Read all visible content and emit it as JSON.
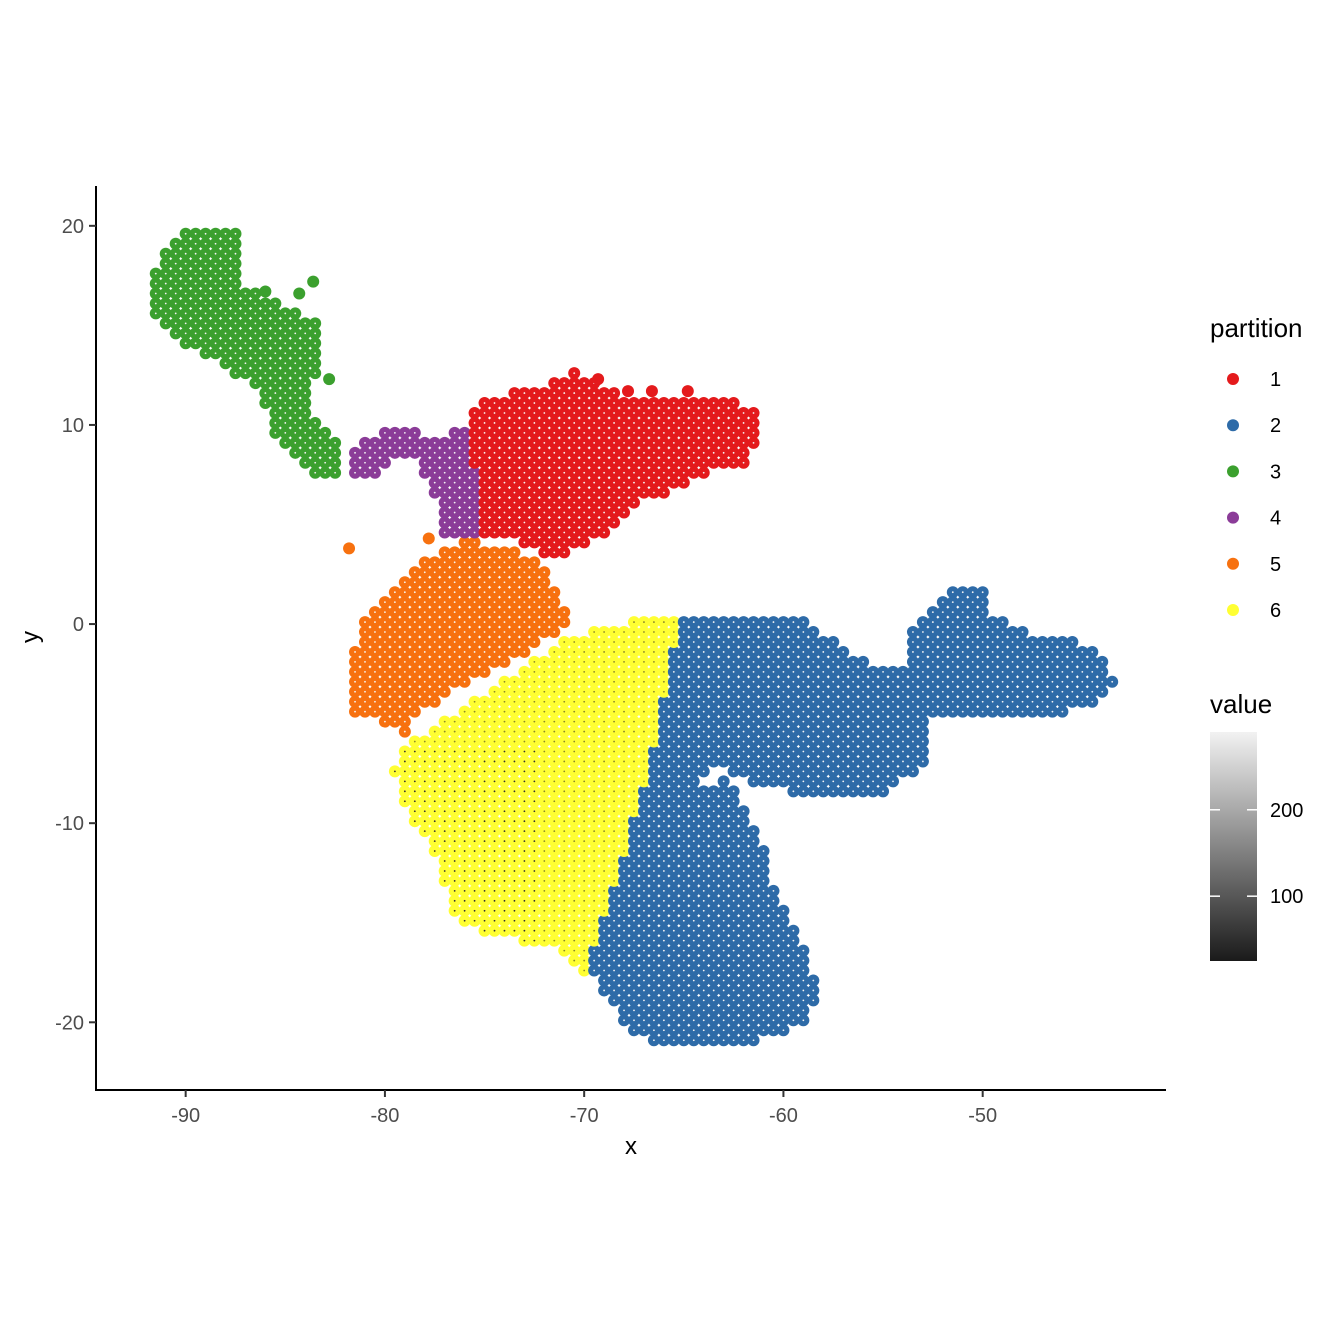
{
  "chart_data": {
    "type": "scatter",
    "xlabel": "x",
    "ylabel": "y",
    "xlim": [
      -94.5,
      -40.8
    ],
    "ylim": [
      -23.4,
      22
    ],
    "x_ticks": [
      -90,
      -80,
      -70,
      -60,
      -50
    ],
    "y_ticks": [
      -20,
      -10,
      0,
      10,
      20
    ],
    "grid": false,
    "grid_step": 0.5,
    "legend_placement": "right",
    "color_legend": {
      "title": "partition",
      "entries": [
        {
          "label": "1",
          "color": "#E41A1C"
        },
        {
          "label": "2",
          "color": "#2E6BA8"
        },
        {
          "label": "3",
          "color": "#3BA02E"
        },
        {
          "label": "4",
          "color": "#8B3C98"
        },
        {
          "label": "5",
          "color": "#F7710F"
        },
        {
          "label": "6",
          "color": "#FFFF33"
        }
      ]
    },
    "value_legend": {
      "title": "value",
      "min": 25,
      "max": 290,
      "ticks": [
        100,
        200
      ],
      "low_color": "#1a1a1a",
      "high_color": "#f2f2f2"
    },
    "regions": [
      {
        "partition": "3",
        "polygon": [
          [
            -91.8,
            17.6
          ],
          [
            -90.5,
            19.5
          ],
          [
            -88.5,
            20
          ],
          [
            -87.2,
            19.5
          ],
          [
            -87.3,
            17.2
          ],
          [
            -85.8,
            16.5
          ],
          [
            -84.5,
            15.8
          ],
          [
            -83.5,
            15.2
          ],
          [
            -83.2,
            13.5
          ],
          [
            -83.5,
            12.2
          ],
          [
            -84,
            11.5
          ],
          [
            -83.4,
            10.2
          ],
          [
            -82.5,
            9.2
          ],
          [
            -82.2,
            7.2
          ],
          [
            -83,
            7.3
          ],
          [
            -84.2,
            8
          ],
          [
            -85.5,
            9.6
          ],
          [
            -86.2,
            11.5
          ],
          [
            -87.5,
            12.5
          ],
          [
            -88.5,
            13.5
          ],
          [
            -90,
            13.8
          ],
          [
            -91.8,
            15.6
          ]
        ],
        "value": 255
      },
      {
        "partition": "4",
        "polygon": [
          [
            -81.5,
            7.2
          ],
          [
            -81.5,
            9
          ],
          [
            -79.8,
            9.8
          ],
          [
            -77.5,
            9.5
          ],
          [
            -75.5,
            9.8
          ],
          [
            -75.2,
            4.6
          ],
          [
            -77.2,
            4.6
          ],
          [
            -77.5,
            6.6
          ],
          [
            -78.3,
            8.2
          ],
          [
            -79.5,
            8.2
          ],
          [
            -80.5,
            7.2
          ]
        ],
        "value": 255
      },
      {
        "partition": "1",
        "polygon": [
          [
            -75.8,
            10.6
          ],
          [
            -74.8,
            11.4
          ],
          [
            -72.8,
            11.8
          ],
          [
            -71.5,
            12.2
          ],
          [
            -70.5,
            12.9
          ],
          [
            -69.5,
            12.2
          ],
          [
            -67.5,
            11.4
          ],
          [
            -65.5,
            11.6
          ],
          [
            -62.5,
            11.2
          ],
          [
            -61.5,
            10.8
          ],
          [
            -61.2,
            9.3
          ],
          [
            -62,
            8
          ],
          [
            -64,
            7.6
          ],
          [
            -65.5,
            6.8
          ],
          [
            -67,
            6.1
          ],
          [
            -68.3,
            5
          ],
          [
            -70,
            3.8
          ],
          [
            -71.5,
            3.3
          ],
          [
            -73.5,
            4.2
          ],
          [
            -75,
            4.6
          ],
          [
            -75.3,
            7.2
          ],
          [
            -75.8,
            9
          ]
        ],
        "value": 255
      },
      {
        "partition": "5",
        "polygon": [
          [
            -81.5,
            -4.4
          ],
          [
            -81.5,
            -1
          ],
          [
            -80.6,
            1
          ],
          [
            -79.3,
            2.2
          ],
          [
            -78,
            3.3
          ],
          [
            -76,
            4.2
          ],
          [
            -74,
            4
          ],
          [
            -72.3,
            3.2
          ],
          [
            -71.5,
            2
          ],
          [
            -70.8,
            0.6
          ],
          [
            -71,
            -0.3
          ],
          [
            -73.2,
            -1.6
          ],
          [
            -75.2,
            -2.6
          ],
          [
            -77,
            -3.6
          ],
          [
            -78.6,
            -4.8
          ],
          [
            -79,
            -5.8
          ],
          [
            -80.2,
            -4.8
          ]
        ],
        "value": 255
      },
      {
        "partition": "6",
        "polygon": [
          [
            -79.6,
            -7.6
          ],
          [
            -79.2,
            -6.2
          ],
          [
            -77,
            -4.8
          ],
          [
            -75.2,
            -3.6
          ],
          [
            -73.4,
            -2.4
          ],
          [
            -71.4,
            -1
          ],
          [
            -69.4,
            -0.3
          ],
          [
            -67.2,
            0.3
          ],
          [
            -65.2,
            0.4
          ],
          [
            -65.8,
            -3
          ],
          [
            -66.4,
            -6
          ],
          [
            -67.6,
            -11
          ],
          [
            -68.6,
            -14
          ],
          [
            -69.2,
            -16
          ],
          [
            -69.8,
            -17.6
          ],
          [
            -71.5,
            -16.3
          ],
          [
            -73.6,
            -15.8
          ],
          [
            -76.4,
            -15
          ],
          [
            -77,
            -13
          ],
          [
            -77.5,
            -11.5
          ],
          [
            -78.8,
            -9.5
          ]
        ],
        "value": 170
      },
      {
        "partition": "2",
        "polygon": [
          [
            -65.2,
            0.2
          ],
          [
            -62,
            0.4
          ],
          [
            -59.2,
            0.4
          ],
          [
            -57.5,
            -0.8
          ],
          [
            -55.4,
            -2.1
          ],
          [
            -54,
            -2.2
          ],
          [
            -53.8,
            -0.6
          ],
          [
            -52.6,
            0.8
          ],
          [
            -51.3,
            1.8
          ],
          [
            -50,
            1.8
          ],
          [
            -49.6,
            0.5
          ],
          [
            -48,
            -0.3
          ],
          [
            -46,
            -0.7
          ],
          [
            -44,
            -1.4
          ],
          [
            -43.3,
            -2.8
          ],
          [
            -44.8,
            -4.2
          ],
          [
            -47,
            -4.8
          ],
          [
            -50.9,
            -4.8
          ],
          [
            -52.8,
            -4.6
          ],
          [
            -52.6,
            -6.6
          ],
          [
            -54.8,
            -8.6
          ],
          [
            -58.4,
            -8.7
          ],
          [
            -61,
            -8.2
          ],
          [
            -62.8,
            -7.3
          ],
          [
            -61.9,
            -9.5
          ],
          [
            -61,
            -11
          ],
          [
            -60.5,
            -13
          ],
          [
            -59.5,
            -15
          ],
          [
            -58.7,
            -16.8
          ],
          [
            -58.3,
            -18.5
          ],
          [
            -59,
            -20
          ],
          [
            -61,
            -20.8
          ],
          [
            -63,
            -21.3
          ],
          [
            -65.8,
            -21.3
          ],
          [
            -67.8,
            -20.3
          ],
          [
            -68.8,
            -19
          ],
          [
            -69.8,
            -17.4
          ],
          [
            -68.8,
            -14
          ],
          [
            -67.8,
            -11
          ],
          [
            -66.5,
            -6
          ],
          [
            -65.8,
            -3
          ]
        ],
        "value": 255
      },
      {
        "partition": "2",
        "polygon": [
          [
            -64.2,
            -7.8
          ],
          [
            -63.2,
            -6.7
          ],
          [
            -62.5,
            -7.4
          ],
          [
            -63.4,
            -8.2
          ]
        ],
        "value": 255,
        "hole": true
      }
    ],
    "extra_points": [
      {
        "partition": "3",
        "x": -83.6,
        "y": 17.2
      },
      {
        "partition": "3",
        "x": -84.3,
        "y": 16.6
      },
      {
        "partition": "3",
        "x": -86,
        "y": 16.7
      },
      {
        "partition": "3",
        "x": -82.8,
        "y": 12.3
      },
      {
        "partition": "5",
        "x": -81.8,
        "y": 3.8
      },
      {
        "partition": "5",
        "x": -77.8,
        "y": 4.3
      },
      {
        "partition": "1",
        "x": -67.8,
        "y": 11.7
      },
      {
        "partition": "1",
        "x": -66.6,
        "y": 11.7
      },
      {
        "partition": "1",
        "x": -64.8,
        "y": 11.7
      },
      {
        "partition": "1",
        "x": -69.3,
        "y": 12.3
      }
    ]
  }
}
